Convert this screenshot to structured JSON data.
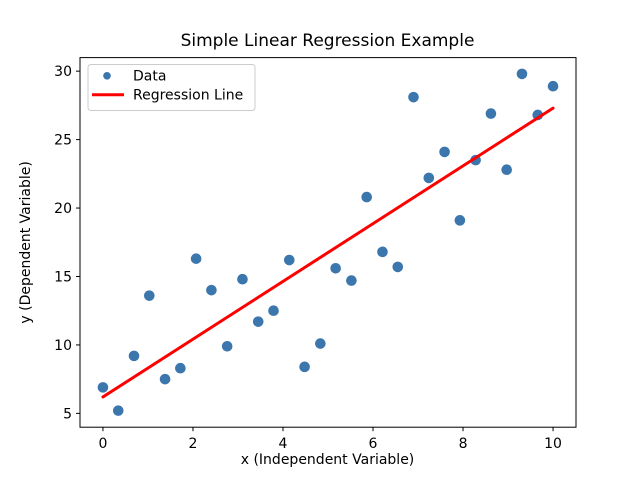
{
  "chart_data": {
    "type": "scatter",
    "title": "Simple Linear Regression Example",
    "xlabel": "x (Independent Variable)",
    "ylabel": "y (Dependent Variable)",
    "xlim": [
      -0.51,
      10.51
    ],
    "ylim": [
      3.99,
      30.99
    ],
    "x_ticks": [
      0,
      2,
      4,
      6,
      8,
      10
    ],
    "y_ticks": [
      5,
      10,
      15,
      20,
      25,
      30
    ],
    "grid": false,
    "legend_position": "upper-left",
    "series": [
      {
        "name": "Data",
        "type": "scatter",
        "color": "#3b76ad",
        "x": [
          0.0,
          0.34,
          0.69,
          1.03,
          1.38,
          1.72,
          2.07,
          2.41,
          2.76,
          3.1,
          3.45,
          3.79,
          4.14,
          4.48,
          4.83,
          5.17,
          5.52,
          5.86,
          6.21,
          6.55,
          6.9,
          7.24,
          7.59,
          7.93,
          8.28,
          8.62,
          8.97,
          9.31,
          9.66,
          10.0
        ],
        "y": [
          6.9,
          5.2,
          9.2,
          13.6,
          7.5,
          8.3,
          16.3,
          14.0,
          9.9,
          14.8,
          11.7,
          12.5,
          16.2,
          8.4,
          10.1,
          15.6,
          14.7,
          20.8,
          16.8,
          15.7,
          28.1,
          22.2,
          24.1,
          19.1,
          23.5,
          26.9,
          22.8,
          29.8,
          26.8,
          28.9
        ]
      },
      {
        "name": "Regression Line",
        "type": "line",
        "color": "#ff0000",
        "x": [
          0.0,
          10.0
        ],
        "y": [
          6.2,
          27.3
        ]
      }
    ],
    "legend": {
      "entries": [
        {
          "label": "Data",
          "marker": "dot"
        },
        {
          "label": "Regression Line",
          "marker": "line"
        }
      ]
    }
  }
}
